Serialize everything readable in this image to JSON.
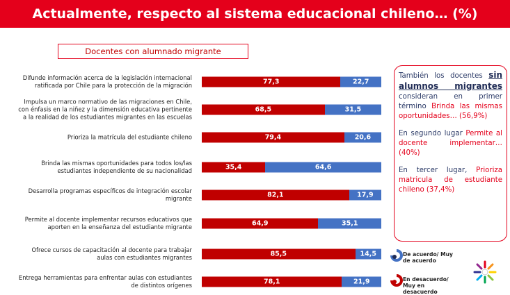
{
  "chart_data": {
    "type": "stacked-bar-horizontal",
    "title": "Actualmente, respecto al sistema educacional chileno… (%)",
    "subtitle": "Docentes con alumnado migrante",
    "categories": [
      "Difunde información acerca de la legislación internacional\nratificada por Chile para la protección de la migración",
      "Impulsa un marco normativo de las migraciones en Chile,\ncon énfasis en la niñez y la dimensión educativa pertinente\na la realidad de los estudiantes migrantes en las escuelas",
      "Prioriza la matrícula del estudiante chileno",
      "Brinda las mismas oportunidades para todos los/las\nestudiantes independiente de su nacionalidad",
      "Desarrolla programas específicos de integración escolar\nmigrante",
      "Permite al docente implementar recursos educativos que\naporten en la enseñanza del estudiante migrante",
      "Ofrece cursos de capacitación al docente para trabajar\naulas con estudiantes migrantes",
      "Entrega herramientas para enfrentar aulas con estudiantes\nde distintos orígenes"
    ],
    "series": [
      {
        "name": "En desacuerdo/ Muy en desacuerdo",
        "color": "#c00000",
        "values": [
          77.3,
          68.5,
          79.4,
          35.4,
          82.1,
          64.9,
          85.5,
          78.1
        ],
        "value_labels": [
          "77,3",
          "68,5",
          "79,4",
          "35,4",
          "82,1",
          "64,9",
          "85,5",
          "78,1"
        ]
      },
      {
        "name": "De acuerdo/ Muy de acuerdo",
        "color": "#4472c4",
        "values": [
          22.7,
          31.5,
          20.6,
          64.6,
          17.9,
          35.1,
          14.5,
          21.9
        ],
        "value_labels": [
          "22,7",
          "31,5",
          "20,6",
          "64,6",
          "17,9",
          "35,1",
          "14,5",
          "21,9"
        ]
      }
    ],
    "xlim": [
      0,
      100
    ]
  },
  "sidebar": {
    "p1": [
      "También los docentes ",
      "sin alumnos migrantes",
      " consideran en primer término ",
      "Brinda las mismas oportunidades… (56,9%)"
    ],
    "p2": [
      "En segundo lugar ",
      "Permite al docente implementar… (40%)"
    ],
    "p3": [
      "En tercer lugar, ",
      "Prioriza matricula de estudiante chileno (37,4%)"
    ]
  }
}
